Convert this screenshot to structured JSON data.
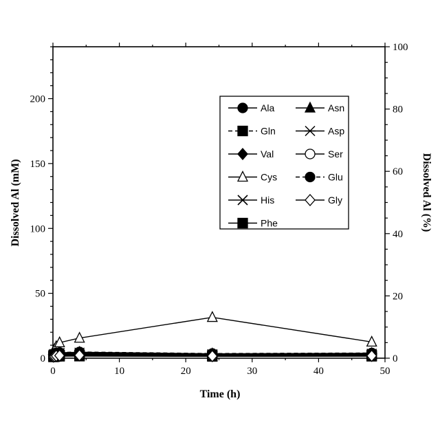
{
  "chart_data": {
    "type": "line",
    "xlabel": "Time (h)",
    "ylabel": "Dissolved Al (mM)",
    "y2label": "Dissolved Al (%)",
    "xlim": [
      0,
      50
    ],
    "ylim": [
      0,
      240
    ],
    "y2lim": [
      0,
      100
    ],
    "x_ticks": [
      0,
      10,
      20,
      30,
      40,
      50
    ],
    "y_ticks": [
      0,
      50,
      100,
      150,
      200
    ],
    "y2_ticks": [
      0,
      20,
      40,
      60,
      80,
      100
    ],
    "grid": false,
    "legend_position": "upper-right",
    "x": [
      0.083,
      0.25,
      0.5,
      1,
      4,
      24,
      48
    ],
    "series": [
      {
        "name": "Ala",
        "marker": "circle-filled",
        "dash": "solid",
        "values": [
          2.5,
          3.0,
          3.2,
          3.4,
          3.6,
          2.8,
          3.0
        ]
      },
      {
        "name": "Gln",
        "marker": "square-filled",
        "dash": "dashed",
        "values": [
          1.8,
          2.0,
          2.2,
          2.4,
          2.6,
          2.0,
          2.2
        ]
      },
      {
        "name": "Val",
        "marker": "diamond-filled",
        "dash": "solid",
        "values": [
          2.2,
          2.6,
          2.8,
          3.0,
          3.2,
          2.4,
          2.6
        ]
      },
      {
        "name": "Cys",
        "marker": "triangle-open",
        "dash": "solid",
        "values": [
          5.0,
          7.0,
          9.0,
          12.0,
          15.5,
          31.5,
          12.5
        ]
      },
      {
        "name": "His",
        "marker": "x",
        "dash": "solid",
        "values": [
          2.0,
          2.3,
          2.6,
          2.8,
          3.0,
          2.5,
          2.7
        ]
      },
      {
        "name": "Phe",
        "marker": "square-filled",
        "dash": "solid",
        "values": [
          1.0,
          1.2,
          1.4,
          1.5,
          1.6,
          1.4,
          1.5
        ]
      },
      {
        "name": "Asn",
        "marker": "triangle-filled",
        "dash": "solid",
        "values": [
          3.0,
          3.4,
          3.8,
          4.2,
          4.6,
          3.4,
          3.8
        ]
      },
      {
        "name": "Asp",
        "marker": "asterisk",
        "dash": "solid",
        "values": [
          2.8,
          3.2,
          3.6,
          4.0,
          4.2,
          3.0,
          3.4
        ]
      },
      {
        "name": "Ser",
        "marker": "circle-open",
        "dash": "solid",
        "values": [
          1.5,
          1.8,
          2.0,
          2.2,
          2.4,
          1.8,
          2.0
        ]
      },
      {
        "name": "Glu",
        "marker": "circle-filled",
        "dash": "dashed",
        "values": [
          3.2,
          3.6,
          4.0,
          4.4,
          4.8,
          3.6,
          4.0
        ]
      },
      {
        "name": "Gly",
        "marker": "diamond-open",
        "dash": "solid",
        "values": [
          1.2,
          1.5,
          1.8,
          2.0,
          2.2,
          1.6,
          1.8
        ]
      }
    ]
  }
}
